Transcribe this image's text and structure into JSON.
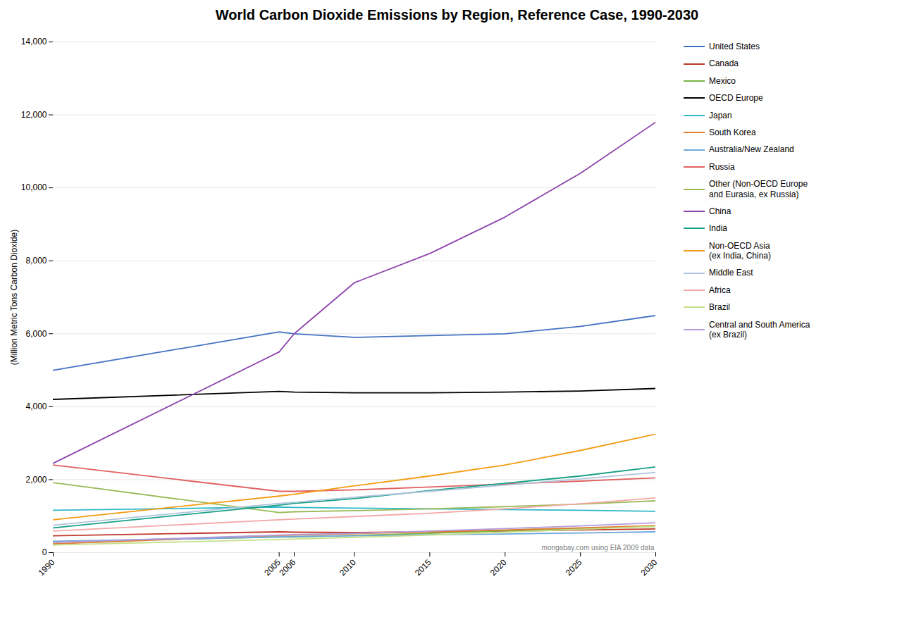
{
  "chart_data": {
    "type": "line",
    "title": "World Carbon Dioxide Emissions by Region, Reference Case, 1990-2030",
    "ylabel": "(Million Metric Tons Carbon Dioxide)",
    "annotations": [
      "mongabay.com using EIA 2009 data"
    ],
    "x": [
      1990,
      2005,
      2006,
      2010,
      2015,
      2020,
      2025,
      2030
    ],
    "xlim": [
      1990,
      2030
    ],
    "xticks": [
      1990,
      2005,
      2006,
      2010,
      2015,
      2020,
      2025,
      2030
    ],
    "ylim": [
      0,
      14000
    ],
    "yticks": [
      0,
      {
        "value": 2000,
        "label": "2,000"
      },
      {
        "value": 4000,
        "label": "4,000"
      },
      {
        "value": 6000,
        "label": "6,000"
      },
      {
        "value": 8000,
        "label": "8,000"
      },
      {
        "value": 10000,
        "label": "10,000"
      },
      {
        "value": 12000,
        "label": "12,000"
      },
      {
        "value": 14000,
        "label": "14,000"
      }
    ],
    "grid": true,
    "legend": "right",
    "series": [
      {
        "name": "United States",
        "color": "#4472c4",
        "values": [
          5000,
          6050,
          6000,
          5900,
          5950,
          6000,
          6200,
          6500
        ]
      },
      {
        "name": "Canada",
        "color": "#c0392b",
        "values": [
          460,
          570,
          560,
          550,
          570,
          590,
          620,
          650
        ]
      },
      {
        "name": "Mexico",
        "color": "#7ab648",
        "values": [
          290,
          430,
          430,
          470,
          530,
          600,
          660,
          720
        ]
      },
      {
        "name": "OECD Europe",
        "color": "#000000",
        "values": [
          4200,
          4420,
          4400,
          4380,
          4380,
          4400,
          4430,
          4500
        ]
      },
      {
        "name": "Japan",
        "color": "#2eb8c8",
        "values": [
          1160,
          1250,
          1240,
          1220,
          1200,
          1180,
          1160,
          1130
        ]
      },
      {
        "name": "South Korea",
        "color": "#e07b30",
        "values": [
          240,
          470,
          480,
          520,
          570,
          620,
          680,
          740
        ]
      },
      {
        "name": "Australia/New Zealand",
        "color": "#6fa8dc",
        "values": [
          310,
          430,
          440,
          460,
          490,
          510,
          540,
          570
        ]
      },
      {
        "name": "Russia",
        "color": "#e06060",
        "values": [
          2400,
          1680,
          1680,
          1720,
          1800,
          1880,
          1960,
          2050
        ]
      },
      {
        "name": "Other (Non-OECD Europe\nand Eurasia, ex Russia)",
        "color": "#9cbb58",
        "values": [
          1920,
          1100,
          1120,
          1150,
          1200,
          1260,
          1330,
          1420
        ]
      },
      {
        "name": "China",
        "color": "#8e44ad",
        "values": [
          2450,
          5500,
          6000,
          7400,
          8200,
          9200,
          10400,
          11800
        ]
      },
      {
        "name": "India",
        "color": "#16a085",
        "values": [
          680,
          1300,
          1350,
          1480,
          1700,
          1900,
          2100,
          2350
        ]
      },
      {
        "name": "Non-OECD Asia\n(ex India, China)",
        "color": "#f39c12",
        "values": [
          900,
          1550,
          1600,
          1830,
          2100,
          2400,
          2800,
          3250
        ]
      },
      {
        "name": "Middle East",
        "color": "#b0c4de",
        "values": [
          750,
          1350,
          1380,
          1520,
          1680,
          1850,
          2020,
          2200
        ]
      },
      {
        "name": "Africa",
        "color": "#f4a7a7",
        "values": [
          590,
          900,
          920,
          990,
          1080,
          1200,
          1340,
          1500
        ]
      },
      {
        "name": "Brazil",
        "color": "#c5e08a",
        "values": [
          210,
          360,
          370,
          420,
          480,
          560,
          640,
          720
        ]
      },
      {
        "name": "Central and South America\n(ex Brazil)",
        "color": "#b39ddb",
        "values": [
          280,
          480,
          495,
          530,
          590,
          660,
          730,
          820
        ]
      }
    ]
  }
}
